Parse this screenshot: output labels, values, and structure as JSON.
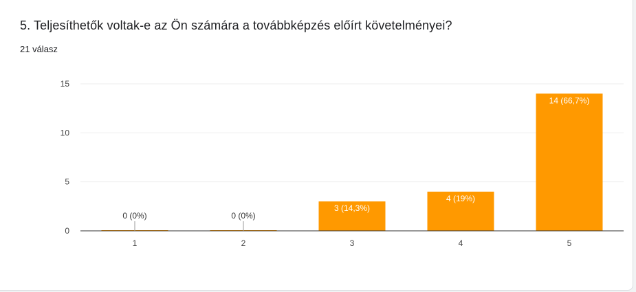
{
  "question": {
    "title": "5. Teljesíthetők voltak-e az Ön számára a továbbképzés előírt követelményei?",
    "response_count": "21 válasz"
  },
  "colors": {
    "bar": "#ff9900",
    "gridline": "#eeeeee",
    "axis": "#333333",
    "label_outside": "#333333",
    "label_inside": "#ffffff"
  },
  "chart_data": {
    "type": "bar",
    "categories": [
      "1",
      "2",
      "3",
      "4",
      "5"
    ],
    "values": [
      0,
      0,
      3,
      4,
      14
    ],
    "data_labels": [
      "0 (0%)",
      "0 (0%)",
      "3 (14,3%)",
      "4 (19%)",
      "14 (66,7%)"
    ],
    "ylim": [
      0,
      15
    ],
    "yticks": [
      0,
      5,
      10,
      15
    ],
    "grid": true,
    "legend": "none",
    "title": "",
    "xlabel": "",
    "ylabel": ""
  }
}
